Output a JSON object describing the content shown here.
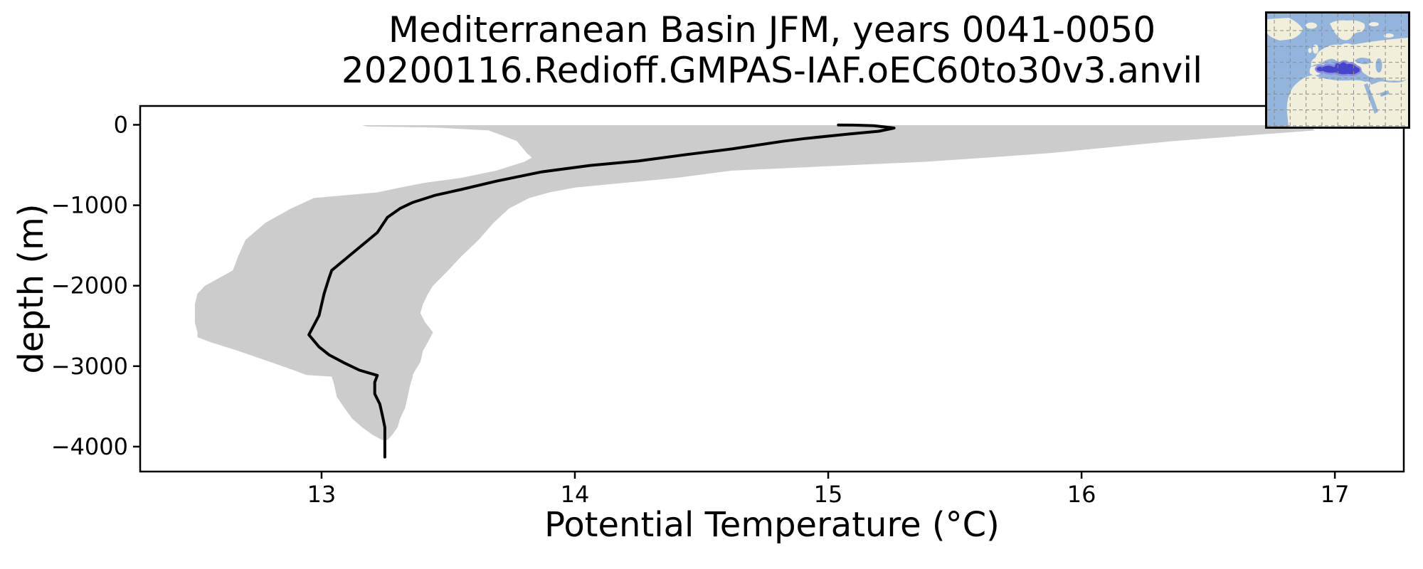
{
  "title": {
    "line1": "Mediterranean Basin JFM, years 0041-0050",
    "line2": "20200116.Redioff.GMPAS-IAF.oEC60to30v3.anvil"
  },
  "axes": {
    "xlabel": "Potential Temperature (°C)",
    "ylabel": "depth (m)",
    "x_ticks": [
      {
        "value": 13,
        "label": "13"
      },
      {
        "value": 14,
        "label": "14"
      },
      {
        "value": 15,
        "label": "15"
      },
      {
        "value": 16,
        "label": "16"
      },
      {
        "value": 17,
        "label": "17"
      }
    ],
    "y_ticks": [
      {
        "value": 0,
        "label": "0"
      },
      {
        "value": -1000,
        "label": "−1000"
      },
      {
        "value": -2000,
        "label": "−2000"
      },
      {
        "value": -3000,
        "label": "−3000"
      },
      {
        "value": -4000,
        "label": "−4000"
      }
    ],
    "xlim": [
      12.284,
      17.272
    ],
    "ylim": [
      -4310,
      234
    ]
  },
  "chart_data": {
    "type": "line",
    "title": "Mediterranean Basin JFM, years 0041-0050",
    "subtitle": "20200116.Redioff.GMPAS-IAF.oEC60to30v3.anvil",
    "xlabel": "Potential Temperature (°C)",
    "ylabel": "depth (m)",
    "xlim": [
      12.284,
      17.272
    ],
    "ylim": [
      -4310,
      234
    ],
    "grid": false,
    "legend": "none",
    "series": [
      {
        "name": "mean potential temperature profile",
        "style": "solid black line",
        "points_T_depth": [
          [
            15.04,
            -2
          ],
          [
            15.1,
            -4
          ],
          [
            15.18,
            -12
          ],
          [
            15.26,
            -40
          ],
          [
            15.2,
            -80
          ],
          [
            15.08,
            -115
          ],
          [
            14.91,
            -170
          ],
          [
            14.82,
            -205
          ],
          [
            14.62,
            -300
          ],
          [
            14.44,
            -370
          ],
          [
            14.25,
            -450
          ],
          [
            14.06,
            -505
          ],
          [
            13.87,
            -585
          ],
          [
            13.69,
            -700
          ],
          [
            13.55,
            -805
          ],
          [
            13.45,
            -875
          ],
          [
            13.36,
            -965
          ],
          [
            13.31,
            -1040
          ],
          [
            13.26,
            -1150
          ],
          [
            13.22,
            -1340
          ],
          [
            13.12,
            -1600
          ],
          [
            13.04,
            -1810
          ],
          [
            13.03,
            -1900
          ],
          [
            13.01,
            -2100
          ],
          [
            12.99,
            -2370
          ],
          [
            12.97,
            -2490
          ],
          [
            12.95,
            -2610
          ],
          [
            12.99,
            -2760
          ],
          [
            13.03,
            -2860
          ],
          [
            13.09,
            -2960
          ],
          [
            13.15,
            -3050
          ],
          [
            13.22,
            -3115
          ],
          [
            13.21,
            -3200
          ],
          [
            13.21,
            -3345
          ],
          [
            13.23,
            -3470
          ],
          [
            13.24,
            -3610
          ],
          [
            13.25,
            -3760
          ],
          [
            13.25,
            -4130
          ]
        ]
      }
    ],
    "envelope": {
      "name": "min/max range envelope",
      "rows_depth_tmin_tmax": [
        [
          -5,
          13.16,
          16.8
        ],
        [
          -20,
          13.18,
          16.88
        ],
        [
          -35,
          13.45,
          16.91
        ],
        [
          -70,
          13.66,
          16.92
        ],
        [
          -200,
          13.77,
          16.37
        ],
        [
          -350,
          13.81,
          15.88
        ],
        [
          -410,
          13.83,
          15.62
        ],
        [
          -460,
          13.8,
          15.38
        ],
        [
          -570,
          13.69,
          14.62
        ],
        [
          -660,
          13.55,
          14.4
        ],
        [
          -720,
          13.41,
          14.2
        ],
        [
          -780,
          13.31,
          14.0
        ],
        [
          -840,
          13.22,
          13.9
        ],
        [
          -910,
          12.97,
          13.82
        ],
        [
          -1040,
          12.88,
          13.74
        ],
        [
          -1215,
          12.78,
          13.68
        ],
        [
          -1430,
          12.7,
          13.62
        ],
        [
          -1640,
          12.67,
          13.55
        ],
        [
          -1810,
          12.65,
          13.5
        ],
        [
          -2000,
          12.54,
          13.44
        ],
        [
          -2100,
          12.51,
          13.42
        ],
        [
          -2230,
          12.5,
          13.4
        ],
        [
          -2340,
          12.5,
          13.39
        ],
        [
          -2460,
          12.5,
          13.41
        ],
        [
          -2580,
          12.51,
          13.44
        ],
        [
          -2640,
          12.51,
          13.43
        ],
        [
          -2700,
          12.56,
          13.42
        ],
        [
          -2810,
          12.67,
          13.4
        ],
        [
          -2950,
          12.8,
          13.39
        ],
        [
          -3050,
          12.89,
          13.37
        ],
        [
          -3110,
          12.94,
          13.36
        ],
        [
          -3130,
          13.04,
          13.36
        ],
        [
          -3230,
          13.05,
          13.35
        ],
        [
          -3380,
          13.06,
          13.34
        ],
        [
          -3520,
          13.09,
          13.33
        ],
        [
          -3650,
          13.12,
          13.31
        ],
        [
          -3760,
          13.16,
          13.3
        ],
        [
          -3850,
          13.2,
          13.28
        ],
        [
          -3920,
          13.24,
          13.26
        ]
      ]
    }
  },
  "inset_map": {
    "description": "Mediterranean region locator map",
    "ocean_color": "#92b4dd",
    "land_color": "#f1eed9",
    "highlight_color": "#4646cd",
    "highlight_edge_color": "#8e8ee0",
    "grid_color": "#8a8a8a",
    "border_color": "#000000"
  },
  "colors": {
    "background": "#ffffff",
    "profile_line": "#000000",
    "envelope_fill": "#cccccc",
    "axis": "#000000",
    "text": "#000000"
  }
}
